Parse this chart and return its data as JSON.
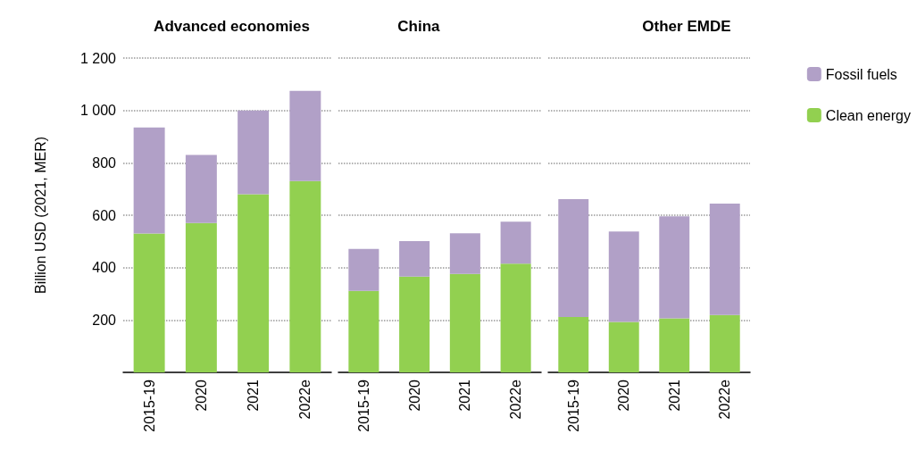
{
  "chart_data": [
    {
      "type": "bar",
      "title": "Advanced economies",
      "ylabel": "Billion USD (2021, MER)",
      "categories": [
        "2015-19",
        "2020",
        "2021",
        "2022e"
      ],
      "stacked": true,
      "ylim": [
        0,
        1200
      ],
      "yticks": [
        200,
        400,
        600,
        800,
        {
          "value": 1000,
          "label": "1 000"
        },
        {
          "value": 1200,
          "label": "1 200"
        }
      ],
      "grid": "y",
      "legend": false,
      "series": [
        {
          "color": "#92d050",
          "values": [
            530,
            570,
            680,
            730
          ]
        },
        {
          "color": "#b1a0c7",
          "values": [
            405,
            260,
            320,
            345
          ]
        }
      ]
    },
    {
      "type": "bar",
      "title": "China",
      "categories": [
        "2015-19",
        "2020",
        "2021",
        "2022e"
      ],
      "stacked": true,
      "ylim": [
        0,
        1200
      ],
      "yticks": [
        200,
        400,
        600,
        800,
        1000,
        1200
      ],
      "grid": "y",
      "legend": false,
      "tick_labels": "x",
      "series": [
        {
          "color": "#92d050",
          "values": [
            311,
            366,
            376,
            415
          ]
        },
        {
          "color": "#b1a0c7",
          "values": [
            160,
            135,
            155,
            160
          ]
        }
      ]
    },
    {
      "type": "bar",
      "title": "Other EMDE",
      "categories": [
        "2015-19",
        "2020",
        "2021",
        "2022e"
      ],
      "stacked": true,
      "ylim": [
        0,
        1200
      ],
      "yticks": [
        200,
        400,
        600,
        800,
        1000,
        1200
      ],
      "grid": "y",
      "legend": "right",
      "tick_labels": "x",
      "series": [
        {
          "name": "Clean energy",
          "color": "#92d050",
          "values": [
            211,
            193,
            206,
            219
          ]
        },
        {
          "name": "Fossil fuels",
          "color": "#b1a0c7",
          "values": [
            450,
            345,
            390,
            425
          ]
        }
      ]
    }
  ]
}
